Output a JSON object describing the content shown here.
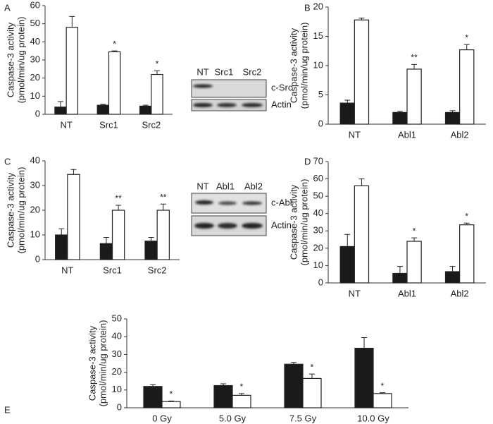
{
  "chart_data": [
    {
      "type": "bar",
      "panel": "A",
      "ylabel": [
        "Caspase-3 activity",
        "(pmol/min/ug protein)"
      ],
      "categories": [
        "NT",
        "Src1",
        "Src2"
      ],
      "ylim": [
        0,
        60
      ],
      "yticks": [
        0,
        10,
        20,
        30,
        40,
        50,
        60
      ],
      "series": [
        {
          "color": "#1a1a1a",
          "values": [
            4,
            5,
            4.5
          ],
          "errors": [
            3,
            0.5,
            0.5
          ]
        },
        {
          "color": "#ffffff",
          "values": [
            48,
            34.5,
            22
          ],
          "errors": [
            6,
            0.5,
            2
          ],
          "annotations": [
            null,
            "*",
            "*"
          ]
        }
      ]
    },
    {
      "type": "bar",
      "panel": "B",
      "ylabel": [
        "Caspase-3 activity",
        "(pmol/min/ug protein)"
      ],
      "categories": [
        "NT",
        "Abl1",
        "Abl2"
      ],
      "ylim": [
        0,
        20
      ],
      "yticks": [
        0,
        5,
        10,
        15,
        20
      ],
      "series": [
        {
          "color": "#1a1a1a",
          "values": [
            3.6,
            2.0,
            2.0
          ],
          "errors": [
            0.5,
            0.2,
            0.3
          ]
        },
        {
          "color": "#ffffff",
          "values": [
            17.8,
            9.4,
            12.7
          ],
          "errors": [
            0.3,
            0.8,
            0.9
          ],
          "annotations": [
            null,
            "**",
            "*"
          ]
        }
      ]
    },
    {
      "type": "bar",
      "panel": "C",
      "ylabel": [
        "Caspase-3 activity",
        "(pmol/min/ug protein)"
      ],
      "categories": [
        "NT",
        "Src1",
        "Src2"
      ],
      "ylim": [
        0,
        40
      ],
      "yticks": [
        0,
        10,
        20,
        30,
        40
      ],
      "series": [
        {
          "color": "#1a1a1a",
          "values": [
            10,
            6.5,
            7.5
          ],
          "errors": [
            2.5,
            2.5,
            1.5
          ]
        },
        {
          "color": "#ffffff",
          "values": [
            34.5,
            20,
            20
          ],
          "errors": [
            2,
            2,
            2.5
          ],
          "annotations": [
            null,
            "**",
            "**"
          ]
        }
      ]
    },
    {
      "type": "bar",
      "panel": "D",
      "ylabel": [
        "Caspase-3 activity",
        "(pmol/min/ug protein)"
      ],
      "categories": [
        "NT",
        "Abl1",
        "Abl2"
      ],
      "ylim": [
        0,
        70
      ],
      "yticks": [
        0,
        10,
        20,
        30,
        40,
        50,
        60,
        70
      ],
      "series": [
        {
          "color": "#1a1a1a",
          "values": [
            21,
            5.5,
            6.5
          ],
          "errors": [
            7,
            4,
            3
          ]
        },
        {
          "color": "#ffffff",
          "values": [
            56,
            24,
            33.5
          ],
          "errors": [
            4,
            2,
            1
          ],
          "annotations": [
            null,
            "*",
            "*"
          ]
        }
      ]
    },
    {
      "type": "bar",
      "panel": "E",
      "ylabel": [
        "Caspase-3 activity",
        "(pmol/min/ug protein)"
      ],
      "categories": [
        "0 Gy",
        "5.0 Gy",
        "7.5 Gy",
        "10.0 Gy"
      ],
      "ylim": [
        0,
        50
      ],
      "yticks": [
        0,
        10,
        20,
        30,
        40,
        50
      ],
      "series": [
        {
          "color": "#1a1a1a",
          "values": [
            12,
            12.5,
            24.5,
            33.5
          ],
          "errors": [
            1,
            1,
            1,
            6
          ]
        },
        {
          "color": "#ffffff",
          "values": [
            3.5,
            7,
            16.5,
            8
          ],
          "errors": [
            0.3,
            1,
            2.5,
            0.5
          ],
          "annotations": [
            "*",
            "*",
            "*",
            "*"
          ]
        }
      ]
    }
  ],
  "blots": [
    {
      "lanes": [
        "NT",
        "Src1",
        "Src2"
      ],
      "rows": [
        "c-Src",
        "Actin"
      ]
    },
    {
      "lanes": [
        "NT",
        "Abl1",
        "Abl2"
      ],
      "rows": [
        "c-Abl",
        "Actin"
      ]
    }
  ]
}
